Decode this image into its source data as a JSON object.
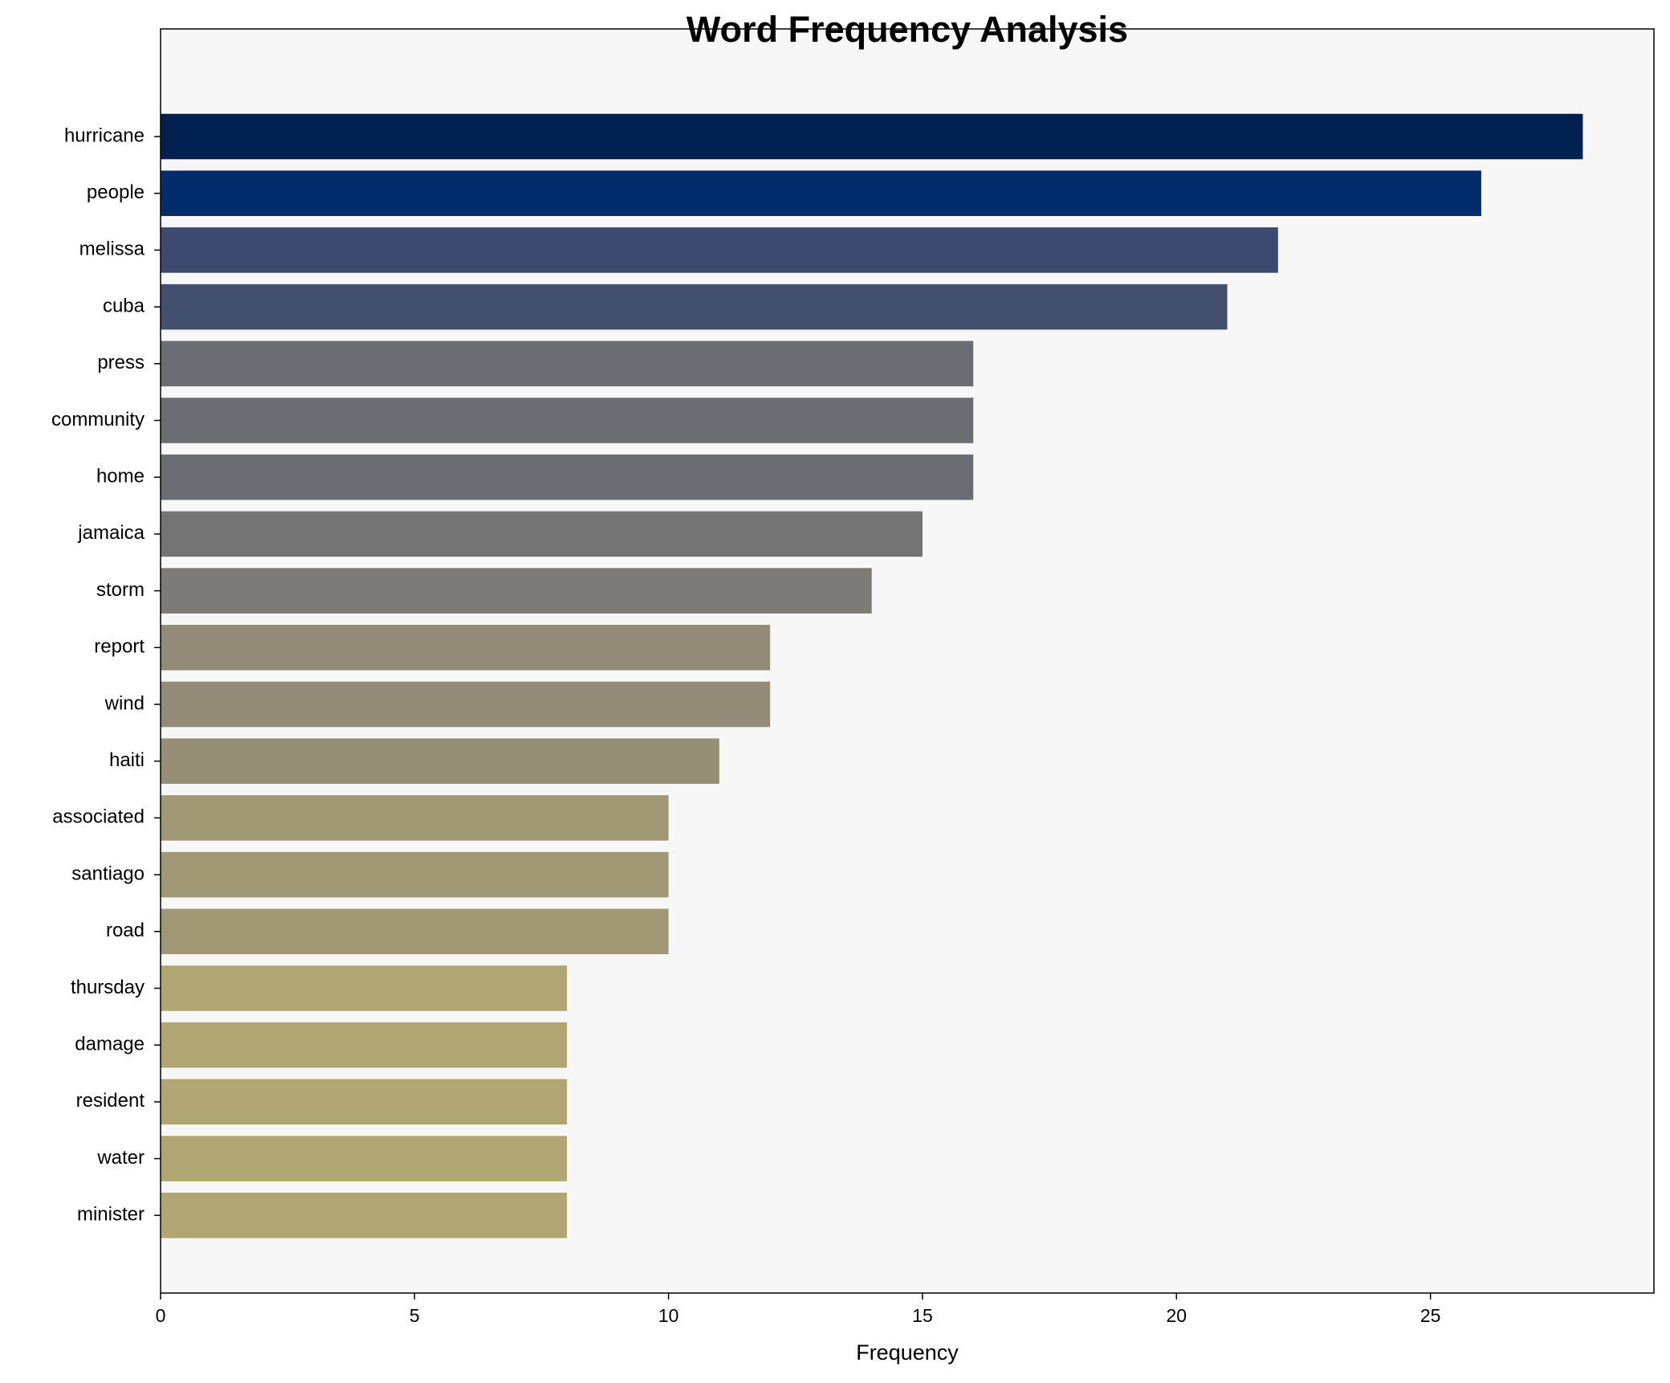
{
  "chart_data": {
    "type": "barh",
    "title": "Word Frequency Analysis",
    "x_label": "Frequency",
    "categories": [
      "hurricane",
      "people",
      "melissa",
      "cuba",
      "press",
      "community",
      "home",
      "jamaica",
      "storm",
      "report",
      "wind",
      "haiti",
      "associated",
      "santiago",
      "road",
      "thursday",
      "damage",
      "resident",
      "water",
      "minister"
    ],
    "values": [
      28,
      26,
      22,
      21,
      16,
      16,
      16,
      15,
      14,
      12,
      12,
      11,
      10,
      10,
      10,
      8,
      8,
      8,
      8,
      8
    ],
    "colors": [
      "#002050",
      "#002c6c",
      "#3b4a6e",
      "#43506d",
      "#6c6d72",
      "#6c6d72",
      "#6c6d72",
      "#747474",
      "#7c7b77",
      "#918b78",
      "#918b78",
      "#968f76",
      "#a09875",
      "#a09875",
      "#a09875",
      "#b0a672",
      "#b0a672",
      "#b0a672",
      "#b0a672",
      "#b0a672"
    ],
    "xlim": [
      0,
      29.4
    ],
    "xticks": [
      0,
      5,
      10,
      15,
      20,
      25
    ]
  }
}
